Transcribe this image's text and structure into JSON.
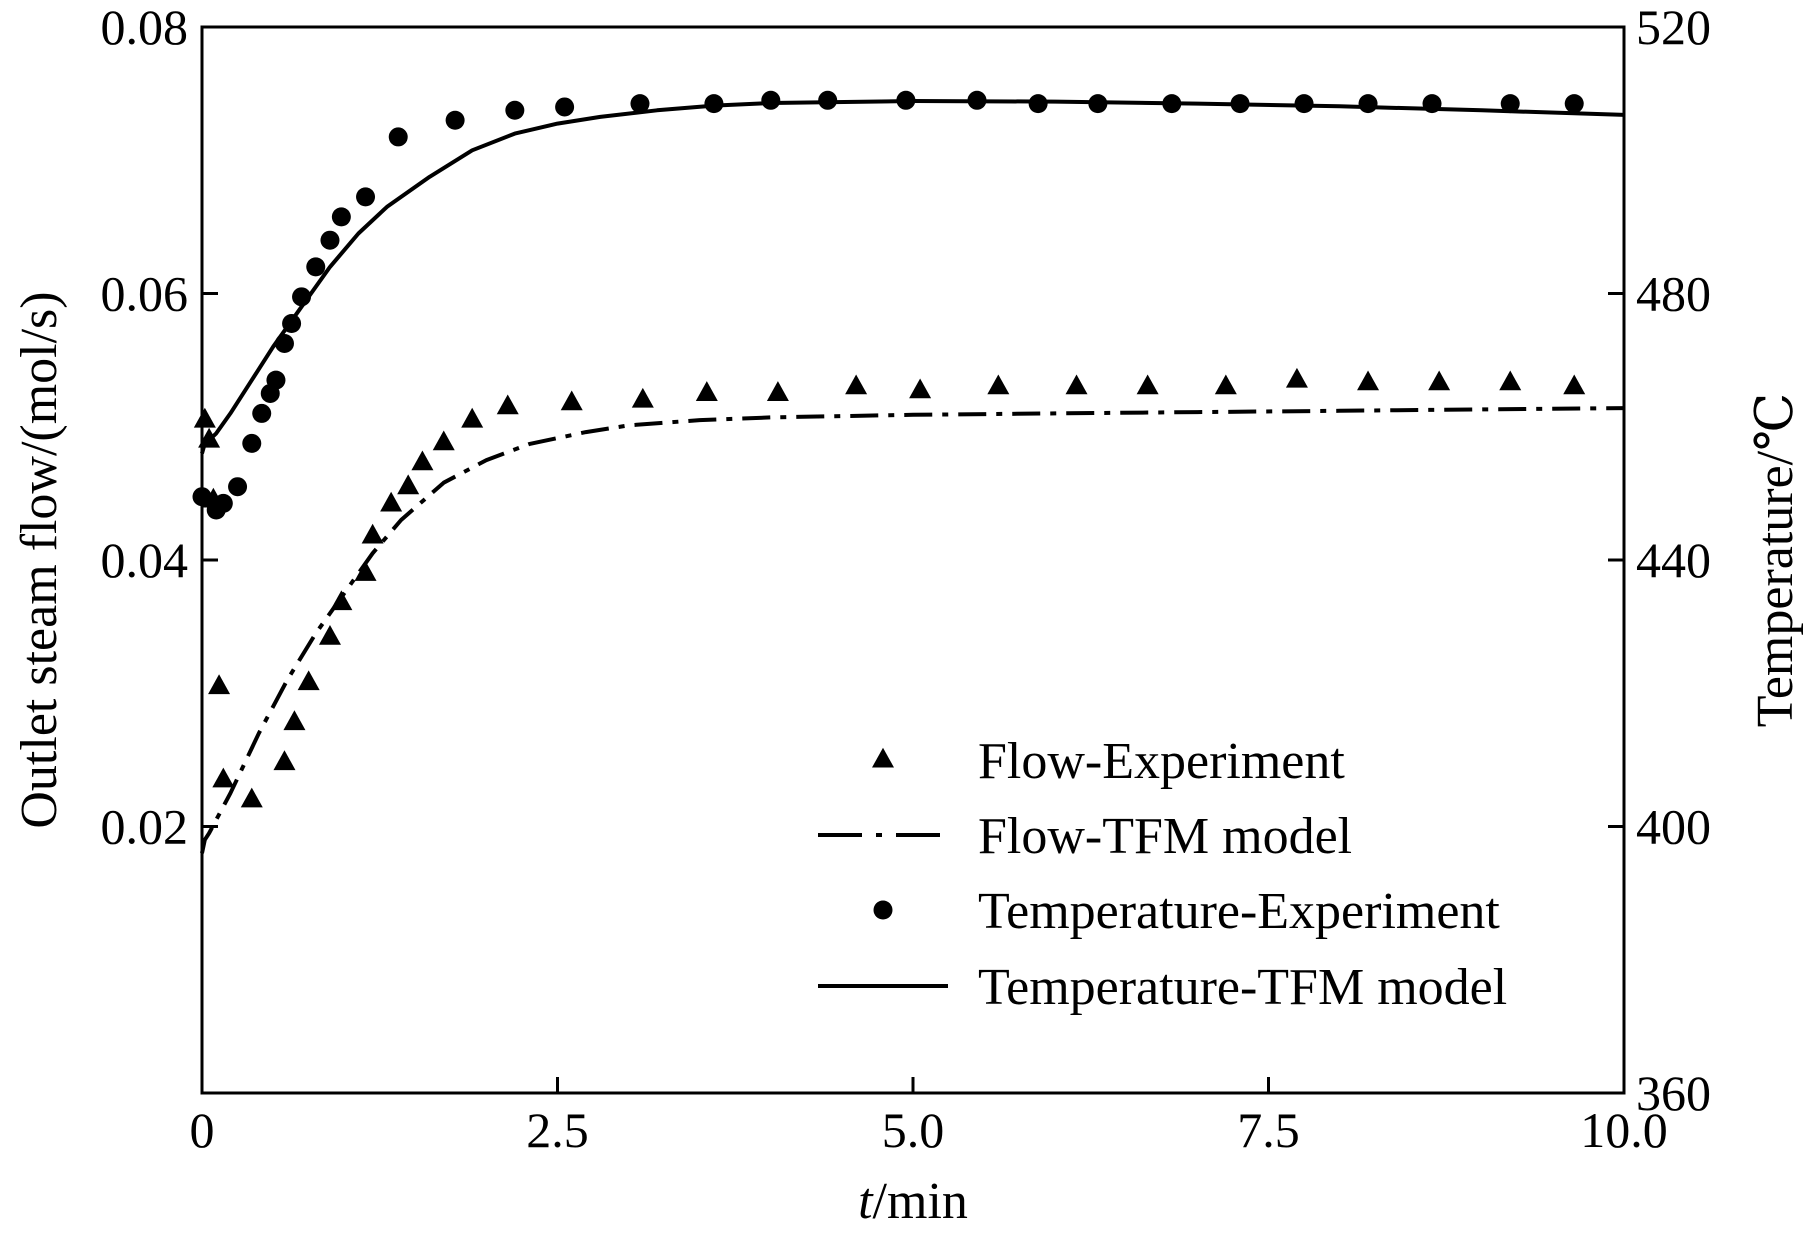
{
  "chart_data": {
    "type": "line",
    "title": "",
    "xlabel": {
      "italic": "t",
      "rest": "/min"
    },
    "ylabel_left": "Outlet steam flow/(mol/s)",
    "ylabel_right": "Temperature/℃",
    "xlim": [
      0,
      10
    ],
    "ylim_left": [
      0,
      0.08
    ],
    "ylim_right": [
      360,
      520
    ],
    "x_ticks": [
      {
        "value": 0,
        "label": "0"
      },
      {
        "value": 2.5,
        "label": "2.5"
      },
      {
        "value": 5.0,
        "label": "5.0"
      },
      {
        "value": 7.5,
        "label": "7.5"
      },
      {
        "value": 10.0,
        "label": "10.0"
      }
    ],
    "y_left_ticks": [
      {
        "value": 0.02,
        "label": "0.02"
      },
      {
        "value": 0.04,
        "label": "0.04"
      },
      {
        "value": 0.06,
        "label": "0.06"
      },
      {
        "value": 0.08,
        "label": "0.08"
      }
    ],
    "y_right_ticks": [
      {
        "value": 360,
        "label": "360"
      },
      {
        "value": 400,
        "label": "400"
      },
      {
        "value": 440,
        "label": "440"
      },
      {
        "value": 480,
        "label": "480"
      },
      {
        "value": 520,
        "label": "520"
      }
    ],
    "grid": false,
    "legend_position": "bottom-right",
    "series": [
      {
        "name": "Flow-Experiment",
        "kind": "scatter",
        "marker": "triangle",
        "axis": "left",
        "x": [
          0.02,
          0.05,
          0.08,
          0.12,
          0.15,
          0.35,
          0.58,
          0.65,
          0.75,
          0.9,
          0.98,
          1.15,
          1.2,
          1.33,
          1.45,
          1.55,
          1.7,
          1.9,
          2.15,
          2.6,
          3.1,
          3.55,
          4.05,
          4.6,
          5.05,
          5.6,
          6.15,
          6.65,
          7.2,
          7.7,
          8.2,
          8.7,
          9.2,
          9.65
        ],
        "y": [
          0.0505,
          0.049,
          0.0445,
          0.0305,
          0.0235,
          0.022,
          0.0248,
          0.0278,
          0.0308,
          0.0342,
          0.0368,
          0.039,
          0.0418,
          0.0442,
          0.0455,
          0.0473,
          0.0488,
          0.0505,
          0.0515,
          0.0518,
          0.052,
          0.0525,
          0.0525,
          0.053,
          0.0527,
          0.053,
          0.053,
          0.053,
          0.053,
          0.0535,
          0.0533,
          0.0533,
          0.0533,
          0.053
        ]
      },
      {
        "name": "Flow-TFM model",
        "kind": "line",
        "line_style": "dash-dot",
        "axis": "left",
        "x": [
          0.0,
          0.02,
          0.05,
          0.1,
          0.2,
          0.4,
          0.6,
          0.8,
          1.0,
          1.2,
          1.4,
          1.7,
          2.0,
          2.3,
          2.7,
          3.0,
          3.5,
          4.0,
          5.0,
          6.0,
          7.0,
          8.0,
          9.0,
          10.0
        ],
        "y": [
          0.018,
          0.019,
          0.0195,
          0.0205,
          0.0225,
          0.027,
          0.031,
          0.0345,
          0.0375,
          0.0405,
          0.043,
          0.0458,
          0.0475,
          0.0487,
          0.0496,
          0.0501,
          0.0505,
          0.0507,
          0.0509,
          0.051,
          0.0511,
          0.0512,
          0.0513,
          0.0514
        ]
      },
      {
        "name": "Temperature-Experiment",
        "kind": "scatter",
        "marker": "circle",
        "axis": "right",
        "x": [
          0.0,
          0.1,
          0.15,
          0.25,
          0.35,
          0.42,
          0.48,
          0.52,
          0.58,
          0.63,
          0.7,
          0.8,
          0.9,
          0.98,
          1.15,
          1.38,
          1.78,
          2.2,
          2.55,
          3.08,
          3.6,
          4.0,
          4.4,
          4.95,
          5.45,
          5.88,
          6.3,
          6.82,
          7.3,
          7.75,
          8.2,
          8.65,
          9.2,
          9.65
        ],
        "y": [
          449.5,
          447.5,
          448.5,
          451,
          457.5,
          462,
          465,
          467,
          472.5,
          475.5,
          479.5,
          484,
          488,
          491.5,
          494.5,
          503.5,
          506,
          507.5,
          508,
          508.5,
          508.5,
          509,
          509,
          509,
          509,
          508.5,
          508.5,
          508.5,
          508.5,
          508.5,
          508.5,
          508.5,
          508.5,
          508.5
        ]
      },
      {
        "name": "Temperature-TFM model",
        "kind": "line",
        "line_style": "solid",
        "axis": "right",
        "x": [
          0.0,
          0.02,
          0.05,
          0.1,
          0.2,
          0.35,
          0.5,
          0.7,
          0.9,
          1.1,
          1.3,
          1.6,
          1.9,
          2.2,
          2.5,
          2.8,
          3.2,
          3.6,
          4.0,
          5.0,
          6.0,
          7.0,
          8.0,
          9.0,
          10.0
        ],
        "y": [
          456,
          457.5,
          458,
          459,
          462,
          467,
          472,
          478,
          484,
          489,
          493,
          497.5,
          501.5,
          504,
          505.5,
          506.5,
          507.5,
          508.2,
          508.6,
          508.9,
          508.8,
          508.5,
          508.1,
          507.5,
          506.8
        ]
      }
    ]
  }
}
